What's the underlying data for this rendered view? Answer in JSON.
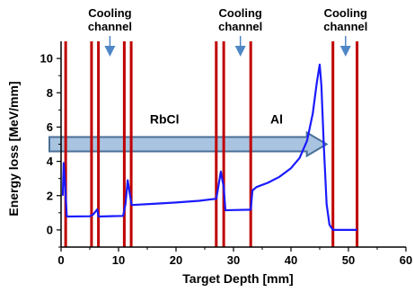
{
  "chart_data": {
    "type": "line",
    "xlabel": "Target Depth [mm]",
    "ylabel": "Energy loss [MeV/mm]",
    "xlim": [
      0,
      60
    ],
    "ylim": [
      -1,
      11
    ],
    "x_ticks": [
      "0",
      "10",
      "20",
      "30",
      "40",
      "50",
      "60"
    ],
    "y_ticks": [
      "0",
      "2",
      "4",
      "6",
      "8",
      "10"
    ],
    "grid": false,
    "colors": {
      "line": "#1a1aff",
      "boundary": "#c00000",
      "beam_fill": "#a9c4e0",
      "beam_stroke": "#4a6f97",
      "annotation_arrow": "#4f86c6"
    },
    "series": [
      {
        "values": [
          {
            "x": 0.3,
            "y": 2.0
          },
          {
            "x": 0.45,
            "y": 3.9
          },
          {
            "x": 0.7,
            "y": 2.6
          },
          {
            "x": 1.0,
            "y": 0.78
          },
          {
            "x": 5.0,
            "y": 0.8
          },
          {
            "x": 5.6,
            "y": 0.9
          },
          {
            "x": 6.3,
            "y": 1.2
          },
          {
            "x": 6.5,
            "y": 0.78
          },
          {
            "x": 10.8,
            "y": 0.82
          },
          {
            "x": 11.2,
            "y": 1.5
          },
          {
            "x": 11.6,
            "y": 2.9
          },
          {
            "x": 12.0,
            "y": 2.0
          },
          {
            "x": 12.3,
            "y": 1.45
          },
          {
            "x": 16.0,
            "y": 1.52
          },
          {
            "x": 20.0,
            "y": 1.6
          },
          {
            "x": 24.0,
            "y": 1.7
          },
          {
            "x": 27.0,
            "y": 1.82
          },
          {
            "x": 27.2,
            "y": 2.2
          },
          {
            "x": 27.8,
            "y": 3.4
          },
          {
            "x": 28.3,
            "y": 2.5
          },
          {
            "x": 28.6,
            "y": 1.15
          },
          {
            "x": 33.0,
            "y": 1.18
          },
          {
            "x": 33.3,
            "y": 2.3
          },
          {
            "x": 34.0,
            "y": 2.5
          },
          {
            "x": 36.0,
            "y": 2.75
          },
          {
            "x": 38.0,
            "y": 3.1
          },
          {
            "x": 40.0,
            "y": 3.6
          },
          {
            "x": 41.5,
            "y": 4.2
          },
          {
            "x": 42.8,
            "y": 5.2
          },
          {
            "x": 43.8,
            "y": 6.8
          },
          {
            "x": 44.5,
            "y": 8.6
          },
          {
            "x": 45.0,
            "y": 9.65
          },
          {
            "x": 45.3,
            "y": 8.4
          },
          {
            "x": 45.7,
            "y": 5.0
          },
          {
            "x": 46.2,
            "y": 1.5
          },
          {
            "x": 46.7,
            "y": 0.3
          },
          {
            "x": 47.3,
            "y": 0.0
          },
          {
            "x": 51.5,
            "y": 0.0
          }
        ]
      }
    ],
    "boundaries_x": [
      0.8,
      5.3,
      6.5,
      11.0,
      12.2,
      27.0,
      28.3,
      33.0,
      47.3,
      51.5
    ],
    "beam_arrow": {
      "x_start": -1,
      "x_end": 46.2,
      "y": 5.0
    },
    "region_labels": [
      {
        "text": "RbCl",
        "x": 18.0,
        "y": 6.2
      },
      {
        "text": "Al",
        "x": 37.5,
        "y": 6.2
      }
    ],
    "annotations": [
      {
        "line1": "Cooling",
        "line2": "channel",
        "x": 8.5,
        "arrow_to_y": 10.0
      },
      {
        "line1": "Cooling",
        "line2": "channel",
        "x": 31.2,
        "arrow_to_y": 10.0
      },
      {
        "line1": "Cooling",
        "line2": "channel",
        "x": 49.5,
        "arrow_to_y": 10.0
      }
    ]
  }
}
